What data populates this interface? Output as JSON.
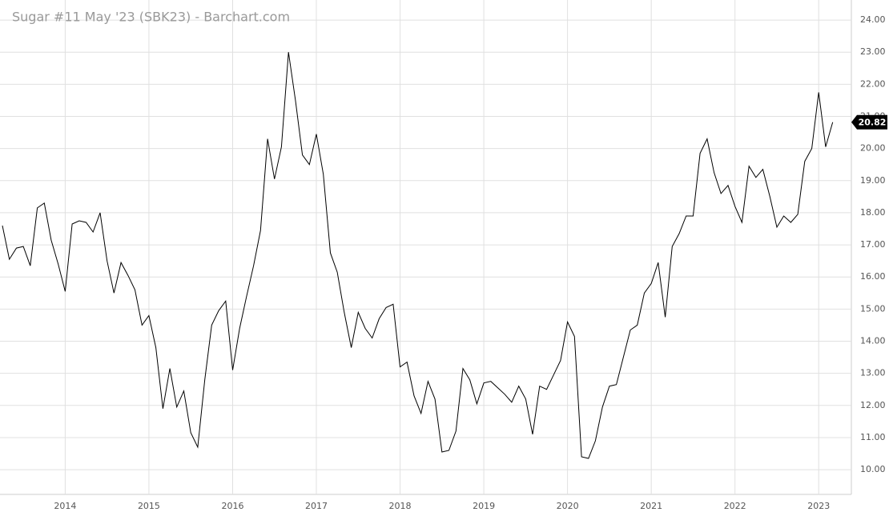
{
  "chart_data": {
    "type": "line",
    "title": "Sugar #11 May '23 (SBK23) - Barchart.com",
    "color": "#000000",
    "grid": true,
    "x": [
      2013.25,
      2013.333,
      2013.417,
      2013.5,
      2013.583,
      2013.667,
      2013.75,
      2013.833,
      2013.917,
      2014,
      2014.083,
      2014.167,
      2014.25,
      2014.333,
      2014.417,
      2014.5,
      2014.583,
      2014.667,
      2014.75,
      2014.833,
      2014.917,
      2015,
      2015.083,
      2015.167,
      2015.25,
      2015.333,
      2015.417,
      2015.5,
      2015.583,
      2015.667,
      2015.75,
      2015.833,
      2015.917,
      2016,
      2016.083,
      2016.167,
      2016.25,
      2016.333,
      2016.417,
      2016.5,
      2016.583,
      2016.667,
      2016.75,
      2016.833,
      2016.917,
      2017,
      2017.083,
      2017.167,
      2017.25,
      2017.333,
      2017.417,
      2017.5,
      2017.583,
      2017.667,
      2017.75,
      2017.833,
      2017.917,
      2018,
      2018.083,
      2018.167,
      2018.25,
      2018.333,
      2018.417,
      2018.5,
      2018.583,
      2018.667,
      2018.75,
      2018.833,
      2018.917,
      2019,
      2019.083,
      2019.167,
      2019.25,
      2019.333,
      2019.417,
      2019.5,
      2019.583,
      2019.667,
      2019.75,
      2019.833,
      2019.917,
      2020,
      2020.083,
      2020.167,
      2020.25,
      2020.333,
      2020.417,
      2020.5,
      2020.583,
      2020.667,
      2020.75,
      2020.833,
      2020.917,
      2021,
      2021.083,
      2021.167,
      2021.25,
      2021.333,
      2021.417,
      2021.5,
      2021.583,
      2021.667,
      2021.75,
      2021.833,
      2021.917,
      2022,
      2022.083,
      2022.167,
      2022.25,
      2022.333,
      2022.417,
      2022.5,
      2022.583,
      2022.667,
      2022.75,
      2022.833,
      2022.917,
      2023,
      2023.083,
      2023.167
    ],
    "values": [
      17.6,
      16.55,
      16.9,
      16.95,
      16.35,
      18.15,
      18.3,
      17.15,
      16.4,
      15.55,
      17.65,
      17.75,
      17.7,
      17.4,
      18.0,
      16.5,
      15.5,
      16.45,
      16.05,
      15.6,
      14.5,
      14.8,
      13.8,
      11.9,
      13.15,
      11.95,
      12.45,
      11.15,
      10.7,
      12.8,
      14.5,
      14.95,
      15.25,
      13.1,
      14.4,
      15.4,
      16.35,
      17.45,
      20.3,
      19.05,
      20.05,
      23.0,
      21.5,
      19.8,
      19.5,
      20.45,
      19.2,
      16.75,
      16.15,
      14.9,
      13.8,
      14.9,
      14.4,
      14.1,
      14.7,
      15.05,
      15.15,
      13.2,
      13.35,
      12.3,
      11.75,
      12.75,
      12.2,
      10.55,
      10.6,
      11.2,
      13.15,
      12.8,
      12.05,
      12.7,
      12.75,
      12.55,
      12.35,
      12.1,
      12.6,
      12.2,
      11.1,
      12.6,
      12.5,
      12.95,
      13.4,
      14.6,
      14.15,
      10.4,
      10.35,
      10.9,
      11.95,
      12.6,
      12.65,
      13.5,
      14.35,
      14.5,
      15.5,
      15.8,
      16.45,
      14.75,
      16.95,
      17.35,
      17.9,
      17.9,
      19.85,
      20.3,
      19.25,
      18.6,
      18.85,
      18.2,
      17.7,
      19.45,
      19.1,
      19.35,
      18.5,
      17.55,
      17.9,
      17.7,
      17.95,
      19.6,
      20.0,
      21.75,
      20.05,
      20.82
    ],
    "xlim": [
      2013.25,
      2023.39
    ],
    "xticks": [
      2014,
      2015,
      2016,
      2017,
      2018,
      2019,
      2020,
      2021,
      2022,
      2023
    ],
    "ylim": [
      9.23,
      24.5
    ],
    "yticks": [
      {
        "value": 10,
        "label": "10.00"
      },
      {
        "value": 11,
        "label": "11.00"
      },
      {
        "value": 12,
        "label": "12.00"
      },
      {
        "value": 13,
        "label": "13.00"
      },
      {
        "value": 14,
        "label": "14.00"
      },
      {
        "value": 15,
        "label": "15.00"
      },
      {
        "value": 16,
        "label": "16.00"
      },
      {
        "value": 17,
        "label": "17.00"
      },
      {
        "value": 18,
        "label": "18.00"
      },
      {
        "value": 19,
        "label": "19.00"
      },
      {
        "value": 20,
        "label": "20.00"
      },
      {
        "value": 21,
        "label": "21.00"
      },
      {
        "value": 22,
        "label": "22.00"
      },
      {
        "value": 23,
        "label": "23.00"
      },
      {
        "value": 24,
        "label": "24.00"
      }
    ]
  }
}
